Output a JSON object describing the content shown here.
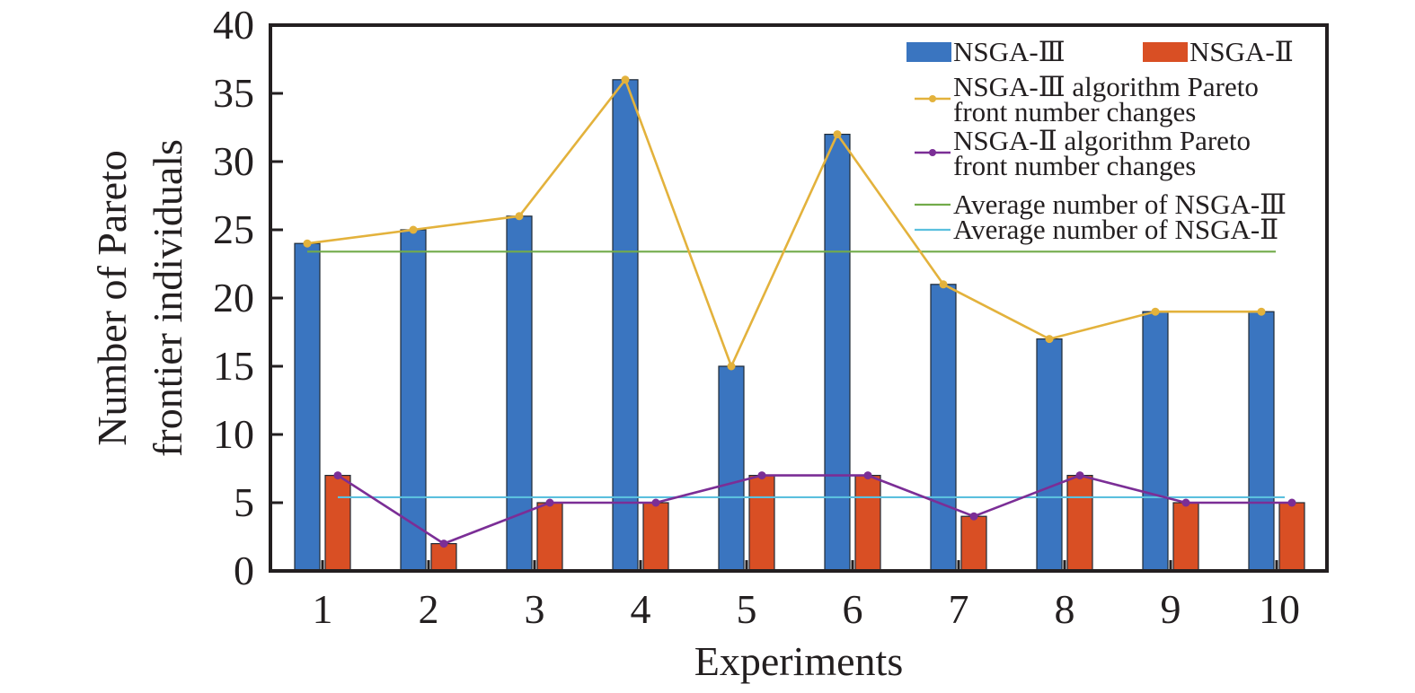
{
  "chart_data": {
    "type": "bar",
    "title": "",
    "xlabel": "Experiments",
    "ylabel_lines": [
      "Number of Pareto",
      "frontier individuals"
    ],
    "ylabel": "Number of Pareto frontier individuals",
    "categories": [
      "1",
      "2",
      "3",
      "4",
      "5",
      "6",
      "7",
      "8",
      "9",
      "10"
    ],
    "ylim": [
      0,
      40
    ],
    "yticks": [
      0,
      5,
      10,
      15,
      20,
      25,
      30,
      35,
      40
    ],
    "ytick_labels": [
      "0",
      "5",
      "10",
      "15",
      "20",
      "25",
      "30",
      "35",
      "40"
    ],
    "grid": false,
    "legend_position": "top-right",
    "series": [
      {
        "name": "NSGA-Ⅲ",
        "kind": "bar",
        "color": "#3a75c0",
        "values": [
          24,
          25,
          26,
          36,
          15,
          32,
          21,
          17,
          19,
          19
        ]
      },
      {
        "name": "NSGA-Ⅱ",
        "kind": "bar",
        "color": "#d94f24",
        "values": [
          7,
          2,
          5,
          5,
          7,
          7,
          4,
          7,
          5,
          5
        ]
      },
      {
        "name": "NSGA-Ⅲ algorithm Pareto front number changes",
        "kind": "line",
        "marker": "circle",
        "color": "#e3b23c",
        "values": [
          24,
          25,
          26,
          36,
          15,
          32,
          21,
          17,
          19,
          19
        ]
      },
      {
        "name": "NSGA-Ⅱ algorithm Pareto front number changes",
        "kind": "line",
        "marker": "circle",
        "color": "#7b2e96",
        "values": [
          7,
          2,
          5,
          5,
          7,
          7,
          4,
          7,
          5,
          5
        ]
      },
      {
        "name": "Average number of NSGA-Ⅲ",
        "kind": "hline",
        "color": "#72ab4a",
        "value": 23.4
      },
      {
        "name": "Average number of NSGA-Ⅱ",
        "kind": "hline",
        "color": "#5bc0de",
        "value": 5.4
      }
    ],
    "legend": [
      {
        "label_lines": [
          "NSGA-Ⅲ"
        ],
        "swatch": "bar",
        "color": "#3a75c0"
      },
      {
        "label_lines": [
          "NSGA-Ⅱ"
        ],
        "swatch": "bar",
        "color": "#d94f24"
      },
      {
        "label_lines": [
          "NSGA-Ⅲ algorithm Pareto",
          "front number changes"
        ],
        "swatch": "line-marker",
        "color": "#e3b23c"
      },
      {
        "label_lines": [
          "NSGA-Ⅱ algorithm Pareto",
          "front number changes"
        ],
        "swatch": "line-marker",
        "color": "#7b2e96"
      },
      {
        "label_lines": [
          "Average number of NSGA-Ⅲ"
        ],
        "swatch": "line",
        "color": "#72ab4a"
      },
      {
        "label_lines": [
          "Average number of NSGA-Ⅱ"
        ],
        "swatch": "line",
        "color": "#5bc0de"
      }
    ]
  }
}
